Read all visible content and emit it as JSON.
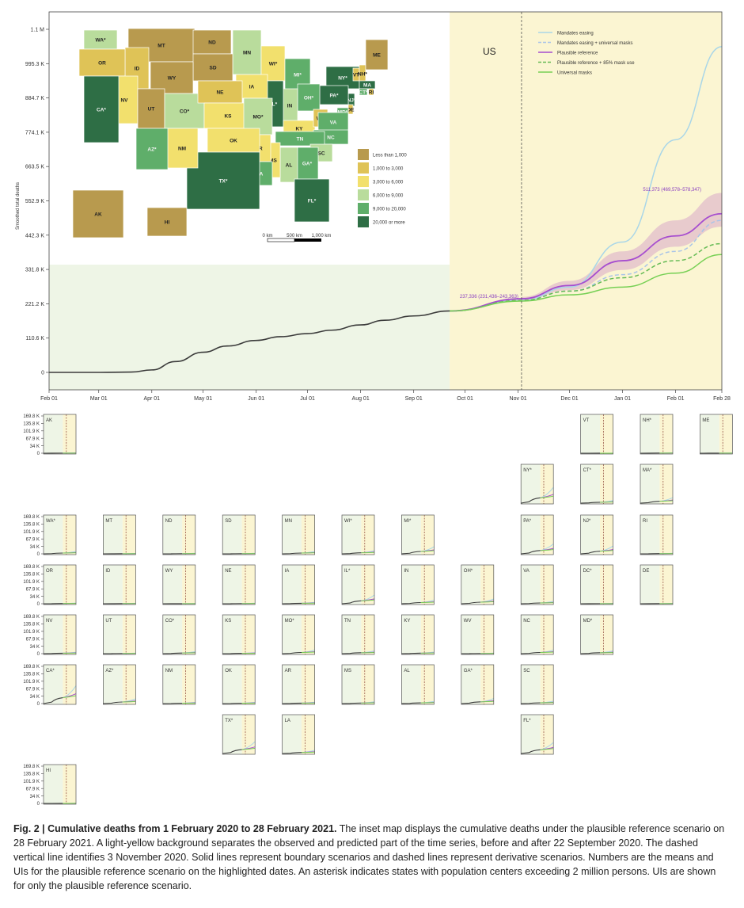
{
  "chart_data": [
    {
      "type": "line",
      "region_label": "US",
      "ylabel": "Smoothed total deaths",
      "y_ticks": [
        "0",
        "110.6 K",
        "221.2 K",
        "331.8 K",
        "442.3 K",
        "552.9 K",
        "663.5 K",
        "774.1 K",
        "884.7 K",
        "995.3 K",
        "1.1 M"
      ],
      "ylim": [
        0,
        1105900
      ],
      "x_ticks": [
        "Feb 01",
        "Mar 01",
        "Apr 01",
        "May 01",
        "Jun 01",
        "Jul 01",
        "Aug 01",
        "Sep 01",
        "Oct 01",
        "Nov 01",
        "Dec 01",
        "Jan 01",
        "Feb 01",
        "Feb 28"
      ],
      "xlim": [
        "2020-02-01",
        "2021-02-28"
      ],
      "observed_end": "2020-09-22",
      "dashed_line_date": "2020-11-03",
      "observed": {
        "x": [
          "2020-02-01",
          "2020-03-01",
          "2020-03-20",
          "2020-04-01",
          "2020-04-15",
          "2020-05-01",
          "2020-05-15",
          "2020-06-01",
          "2020-06-15",
          "2020-07-01",
          "2020-07-15",
          "2020-08-01",
          "2020-08-15",
          "2020-09-01",
          "2020-09-22"
        ],
        "y": [
          0,
          0,
          1000,
          8000,
          35000,
          65000,
          85000,
          103000,
          115000,
          125000,
          136000,
          153000,
          168000,
          182000,
          198000
        ]
      },
      "series": [
        {
          "name": "Mandates easing",
          "style": "solid",
          "color": "#a9d6e8",
          "x": [
            "2020-09-22",
            "2020-11-03",
            "2020-12-01",
            "2021-01-01",
            "2021-02-01",
            "2021-02-28"
          ],
          "y": [
            198000,
            232000,
            275000,
            420000,
            750000,
            1050000
          ]
        },
        {
          "name": "Mandates easing + universal masks",
          "style": "dashed",
          "color": "#a9c4e8",
          "x": [
            "2020-09-22",
            "2020-11-03",
            "2020-12-01",
            "2021-01-01",
            "2021-02-01",
            "2021-02-28"
          ],
          "y": [
            198000,
            232000,
            262000,
            315000,
            390000,
            490000
          ]
        },
        {
          "name": "Plausible reference",
          "style": "solid",
          "color": "#a64dcf",
          "x": [
            "2020-09-22",
            "2020-11-03",
            "2020-12-01",
            "2021-01-01",
            "2021-02-01",
            "2021-02-28"
          ],
          "y": [
            198000,
            237336,
            280000,
            360000,
            440000,
            511373
          ]
        },
        {
          "name": "Plausible reference + 85% mask use",
          "style": "dashed",
          "color": "#66bb55",
          "x": [
            "2020-09-22",
            "2020-11-03",
            "2020-12-01",
            "2021-01-01",
            "2021-02-01",
            "2021-02-28"
          ],
          "y": [
            198000,
            232000,
            262000,
            305000,
            360000,
            415000
          ]
        },
        {
          "name": "Universal masks",
          "style": "solid",
          "color": "#77d055",
          "x": [
            "2020-09-22",
            "2020-11-03",
            "2020-12-01",
            "2021-01-01",
            "2021-02-01",
            "2021-02-28"
          ],
          "y": [
            198000,
            230000,
            250000,
            275000,
            320000,
            380000
          ]
        }
      ],
      "uncertainty_band": {
        "series": "Plausible reference",
        "x": [
          "2020-11-03",
          "2020-12-01",
          "2021-01-01",
          "2021-02-01",
          "2021-02-28"
        ],
        "low": [
          231436,
          265000,
          330000,
          405000,
          469578
        ],
        "high": [
          243363,
          295000,
          390000,
          490000,
          578347
        ]
      },
      "annotations": [
        {
          "text": "237,336 (231,436–243,363)",
          "x": "2020-11-03",
          "y": 237336
        },
        {
          "text": "511,373 (469,578–578,347)",
          "x": "2021-02-28",
          "y": 511373
        }
      ]
    },
    {
      "type": "small_multiples",
      "y_ticks": [
        "0",
        "34 K",
        "67.9 K",
        "101.9 K",
        "135.8 K",
        "169.8 K"
      ],
      "ylim": [
        0,
        169800
      ],
      "states": [
        {
          "label": "AK",
          "col": 0,
          "row": 0,
          "final": 700
        },
        {
          "label": "VT",
          "col": 9,
          "row": 0,
          "final": 200
        },
        {
          "label": "NH*",
          "col": 10,
          "row": 0,
          "final": 900
        },
        {
          "label": "ME",
          "col": 11,
          "row": 0,
          "final": 400
        },
        {
          "label": "NY*",
          "col": 8,
          "row": 1,
          "final": 40000
        },
        {
          "label": "CT*",
          "col": 9,
          "row": 1,
          "final": 6500
        },
        {
          "label": "MA*",
          "col": 10,
          "row": 1,
          "final": 14000
        },
        {
          "label": "WA*",
          "col": 0,
          "row": 2,
          "final": 6000
        },
        {
          "label": "MT",
          "col": 1,
          "row": 2,
          "final": 1000
        },
        {
          "label": "ND",
          "col": 2,
          "row": 2,
          "final": 1500
        },
        {
          "label": "SD",
          "col": 3,
          "row": 2,
          "final": 1500
        },
        {
          "label": "MN",
          "col": 4,
          "row": 2,
          "final": 6000
        },
        {
          "label": "WI*",
          "col": 5,
          "row": 2,
          "final": 8000
        },
        {
          "label": "MI*",
          "col": 6,
          "row": 2,
          "final": 18000
        },
        {
          "label": "PA*",
          "col": 8,
          "row": 2,
          "final": 25000
        },
        {
          "label": "NJ*",
          "col": 9,
          "row": 2,
          "final": 20000
        },
        {
          "label": "RI",
          "col": 10,
          "row": 2,
          "final": 1600
        },
        {
          "label": "OR",
          "col": 0,
          "row": 3,
          "final": 1800
        },
        {
          "label": "ID",
          "col": 1,
          "row": 3,
          "final": 1200
        },
        {
          "label": "WY",
          "col": 2,
          "row": 3,
          "final": 400
        },
        {
          "label": "NE",
          "col": 3,
          "row": 3,
          "final": 1500
        },
        {
          "label": "IA",
          "col": 4,
          "row": 3,
          "final": 3500
        },
        {
          "label": "IL*",
          "col": 5,
          "row": 3,
          "final": 22000
        },
        {
          "label": "IN",
          "col": 6,
          "row": 3,
          "final": 9000
        },
        {
          "label": "OH*",
          "col": 7,
          "row": 3,
          "final": 12000
        },
        {
          "label": "VA",
          "col": 8,
          "row": 3,
          "final": 6000
        },
        {
          "label": "DC*",
          "col": 9,
          "row": 3,
          "final": 800
        },
        {
          "label": "DE",
          "col": 10,
          "row": 3,
          "final": 900
        },
        {
          "label": "NV",
          "col": 0,
          "row": 4,
          "final": 3500
        },
        {
          "label": "UT",
          "col": 1,
          "row": 4,
          "final": 1500
        },
        {
          "label": "CO*",
          "col": 2,
          "row": 4,
          "final": 5000
        },
        {
          "label": "KS",
          "col": 3,
          "row": 4,
          "final": 2500
        },
        {
          "label": "MO*",
          "col": 4,
          "row": 4,
          "final": 9000
        },
        {
          "label": "TN",
          "col": 5,
          "row": 4,
          "final": 7000
        },
        {
          "label": "KY",
          "col": 6,
          "row": 4,
          "final": 4000
        },
        {
          "label": "WV",
          "col": 7,
          "row": 4,
          "final": 1500
        },
        {
          "label": "NC",
          "col": 8,
          "row": 4,
          "final": 9000
        },
        {
          "label": "MD*",
          "col": 9,
          "row": 4,
          "final": 7000
        },
        {
          "label": "CA*",
          "col": 0,
          "row": 5,
          "final": 45000
        },
        {
          "label": "AZ*",
          "col": 1,
          "row": 5,
          "final": 12000
        },
        {
          "label": "NM",
          "col": 2,
          "row": 5,
          "final": 3000
        },
        {
          "label": "OK",
          "col": 3,
          "row": 5,
          "final": 3000
        },
        {
          "label": "AR",
          "col": 4,
          "row": 5,
          "final": 3500
        },
        {
          "label": "MS",
          "col": 5,
          "row": 5,
          "final": 4500
        },
        {
          "label": "AL",
          "col": 6,
          "row": 5,
          "final": 5500
        },
        {
          "label": "GA*",
          "col": 7,
          "row": 5,
          "final": 13000
        },
        {
          "label": "SC",
          "col": 8,
          "row": 5,
          "final": 6000
        },
        {
          "label": "TX*",
          "col": 3,
          "row": 6,
          "final": 30000
        },
        {
          "label": "LA",
          "col": 4,
          "row": 6,
          "final": 8000
        },
        {
          "label": "FL*",
          "col": 8,
          "row": 6,
          "final": 28000
        },
        {
          "label": "HI",
          "col": 0,
          "row": 7,
          "final": 300
        }
      ]
    }
  ],
  "map": {
    "legend": [
      {
        "label": "Less than 1,000",
        "color": "#b89a4e"
      },
      {
        "label": "1,000 to 3,000",
        "color": "#dfc357"
      },
      {
        "label": "3,000 to 6,000",
        "color": "#f2e06d"
      },
      {
        "label": "6,000 to 9,000",
        "color": "#b9dc9c"
      },
      {
        "label": "9,000 to 20,000",
        "color": "#5fae6a"
      },
      {
        "label": "20,000 or more",
        "color": "#2e6e45"
      }
    ],
    "scale_labels": [
      "0 km",
      "500 km",
      "1,000 km"
    ],
    "states": [
      {
        "label": "WA*",
        "c": 3
      },
      {
        "label": "MT",
        "c": 0
      },
      {
        "label": "ND",
        "c": 0
      },
      {
        "label": "MN",
        "c": 3
      },
      {
        "label": "WI*",
        "c": 2
      },
      {
        "label": "MI*",
        "c": 4
      },
      {
        "label": "NY*",
        "c": 5
      },
      {
        "label": "VT",
        "c": 1
      },
      {
        "label": "NH*",
        "c": 1
      },
      {
        "label": "ME",
        "c": 0
      },
      {
        "label": "MA",
        "c": 5
      },
      {
        "label": "RI",
        "c": 1
      },
      {
        "label": "CT*",
        "c": 4
      },
      {
        "label": "NJ*",
        "c": 5
      },
      {
        "label": "DE",
        "c": 1
      },
      {
        "label": "MD*",
        "c": 4
      },
      {
        "label": "DC*",
        "c": 1
      },
      {
        "label": "PA*",
        "c": 5
      },
      {
        "label": "OH*",
        "c": 4
      },
      {
        "label": "IN",
        "c": 3
      },
      {
        "label": "IL*",
        "c": 5
      },
      {
        "label": "IA",
        "c": 2
      },
      {
        "label": "SD",
        "c": 0
      },
      {
        "label": "WY",
        "c": 0
      },
      {
        "label": "ID",
        "c": 1
      },
      {
        "label": "OR",
        "c": 1
      },
      {
        "label": "NV",
        "c": 2
      },
      {
        "label": "UT",
        "c": 0
      },
      {
        "label": "CO*",
        "c": 3
      },
      {
        "label": "NE",
        "c": 1
      },
      {
        "label": "KS",
        "c": 2
      },
      {
        "label": "MO*",
        "c": 3
      },
      {
        "label": "KY",
        "c": 2
      },
      {
        "label": "WV",
        "c": 1
      },
      {
        "label": "VA",
        "c": 4
      },
      {
        "label": "NC",
        "c": 4
      },
      {
        "label": "TN",
        "c": 4
      },
      {
        "label": "SC",
        "c": 3
      },
      {
        "label": "GA*",
        "c": 4
      },
      {
        "label": "AL",
        "c": 3
      },
      {
        "label": "MS",
        "c": 2
      },
      {
        "label": "AR",
        "c": 2
      },
      {
        "label": "LA",
        "c": 4
      },
      {
        "label": "OK",
        "c": 2
      },
      {
        "label": "TX*",
        "c": 5
      },
      {
        "label": "NM",
        "c": 2
      },
      {
        "label": "AZ*",
        "c": 4
      },
      {
        "label": "CA*",
        "c": 5
      },
      {
        "label": "FL*",
        "c": 5
      },
      {
        "label": "AK",
        "c": 0
      },
      {
        "label": "HI",
        "c": 0
      }
    ]
  },
  "caption": {
    "title": "Fig. 2 | Cumulative deaths from 1 February 2020 to 28 February 2021.",
    "body": " The inset map displays the cumulative deaths under the plausible reference scenario on 28 February 2021. A light-yellow background separates the observed and predicted part of the time series, before and after 22 September 2020. The dashed vertical line identifies 3 November 2020. Solid lines represent boundary scenarios and dashed lines represent derivative scenarios. Numbers are the means and UIs for the plausible reference scenario on the highlighted dates. An asterisk indicates states with population centers exceeding 2 million persons. UIs are shown for only the plausible reference scenario."
  }
}
